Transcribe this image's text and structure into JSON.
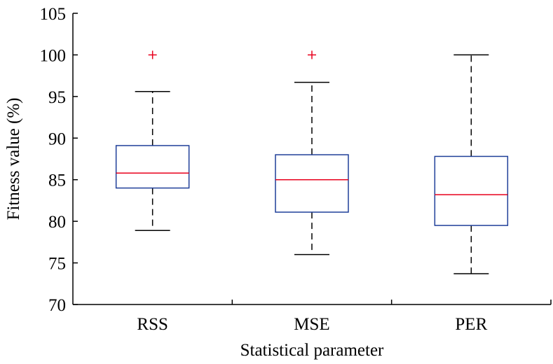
{
  "chart_data": {
    "type": "boxplot",
    "xlabel": "Statistical parameter",
    "ylabel": "Fitness value (%)",
    "ylim": [
      70,
      105
    ],
    "yticks": [
      70,
      75,
      80,
      85,
      90,
      95,
      100,
      105
    ],
    "categories": [
      "RSS",
      "MSE",
      "PER"
    ],
    "boxes": [
      {
        "category": "RSS",
        "whisker_low": 78.9,
        "q1": 84.0,
        "median": 85.8,
        "q3": 89.1,
        "whisker_high": 95.6,
        "outliers": [
          100.0
        ]
      },
      {
        "category": "MSE",
        "whisker_low": 76.0,
        "q1": 81.1,
        "median": 85.0,
        "q3": 88.0,
        "whisker_high": 96.7,
        "outliers": [
          100.0
        ]
      },
      {
        "category": "PER",
        "whisker_low": 73.7,
        "q1": 79.5,
        "median": 83.2,
        "q3": 87.8,
        "whisker_high": 100.0,
        "outliers": []
      }
    ],
    "grid": false,
    "colors": {
      "box": "#1f3f99",
      "median": "#e8001c",
      "outlier": "#e8001c",
      "whisker": "#000000"
    }
  }
}
